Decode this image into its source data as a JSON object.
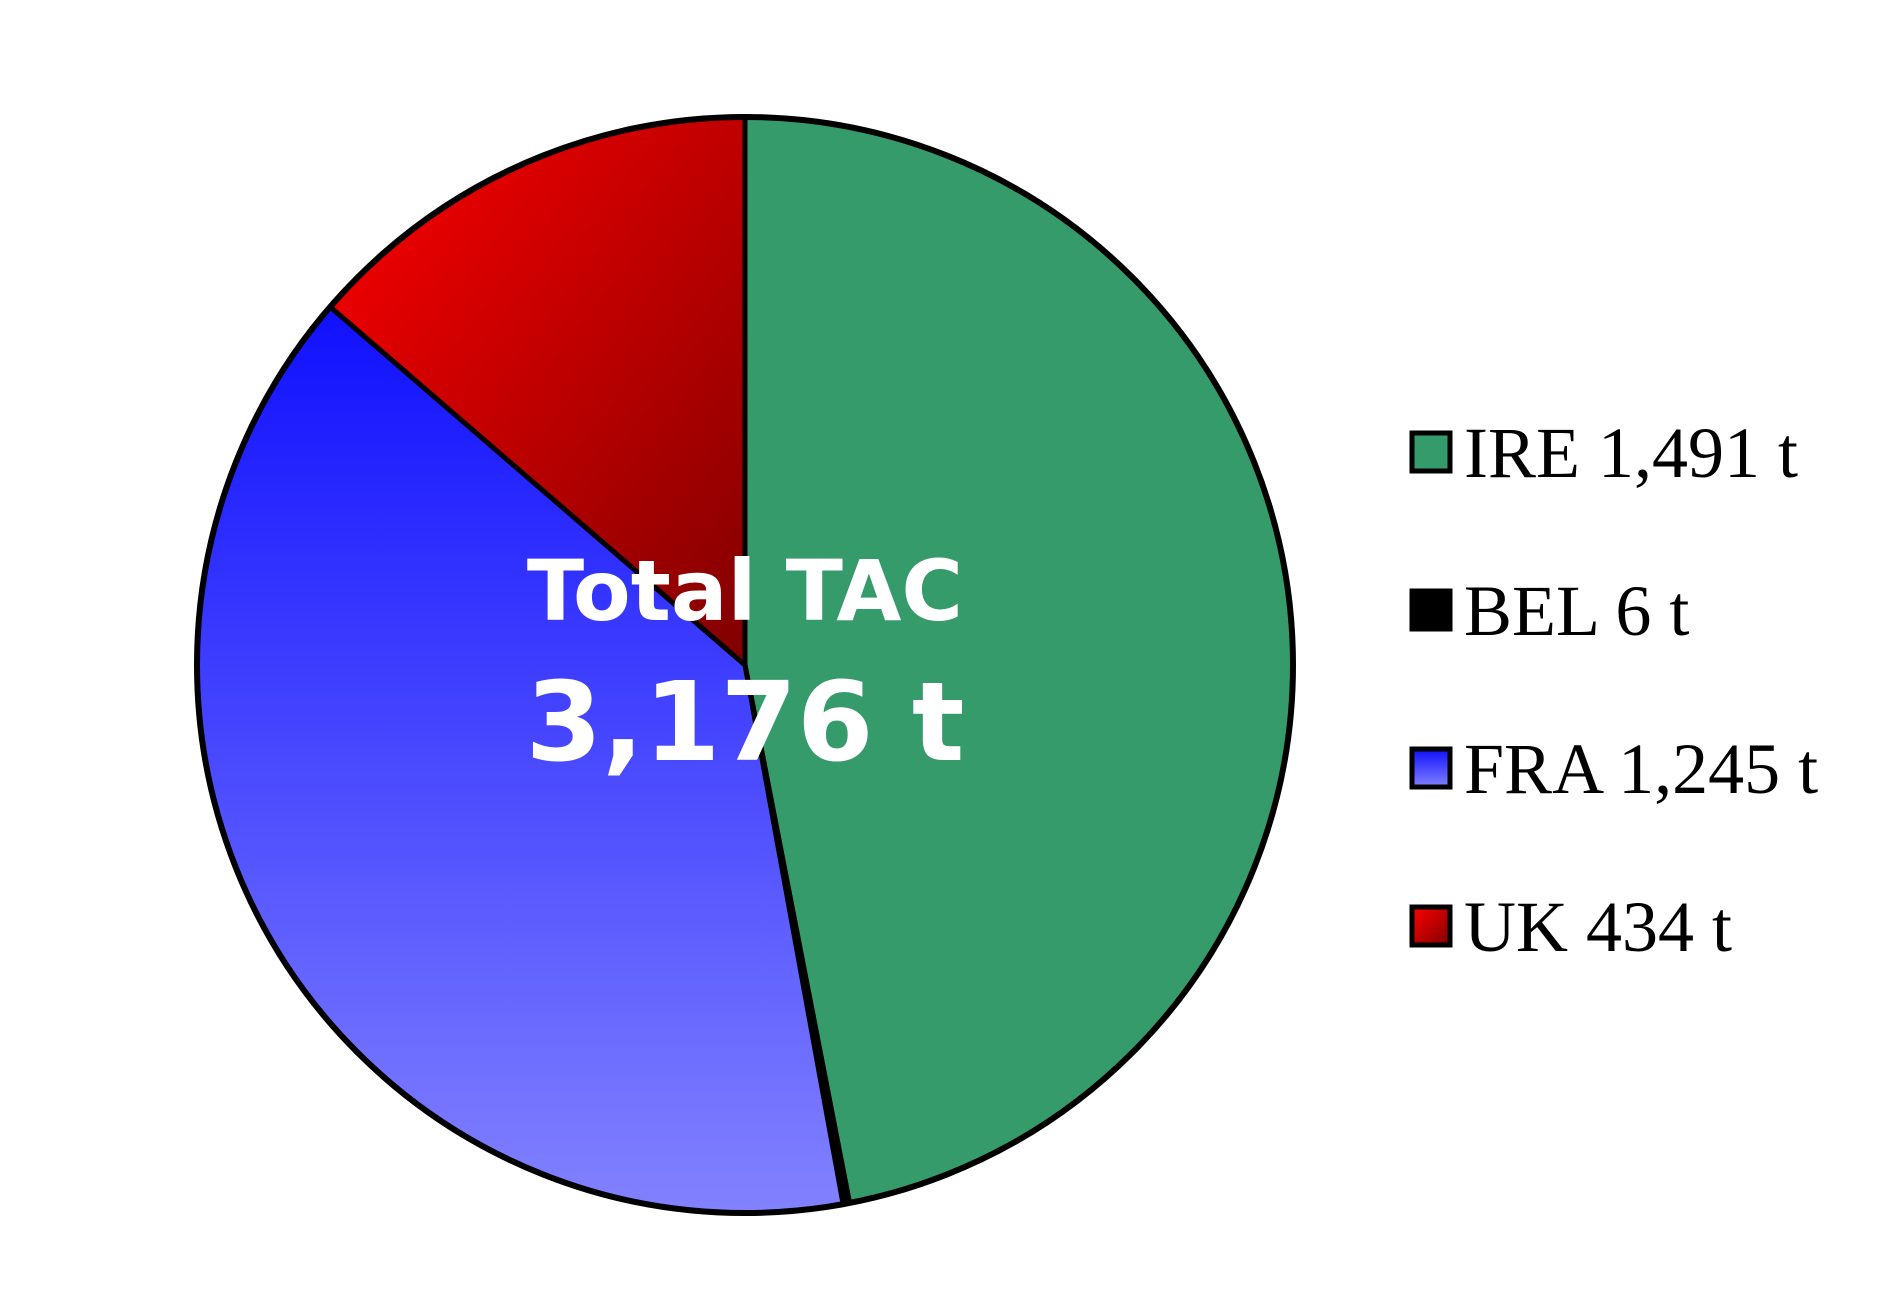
{
  "chart_data": {
    "type": "pie",
    "center_label": {
      "line1": "Total TAC",
      "line2": "3,176 t"
    },
    "start_angle_deg": 0,
    "direction": "clockwise",
    "slices": [
      {
        "name": "IRE",
        "value": 1491,
        "label": "IRE 1,491 t",
        "color": "#369b6b",
        "gradient": null
      },
      {
        "name": "BEL",
        "value": 6,
        "label": "BEL 6 t",
        "color": "#000000",
        "gradient": null
      },
      {
        "name": "FRA",
        "value": 1245,
        "label": "FRA 1,245 t",
        "color": "#5a5aff",
        "gradient": [
          "#1010ff",
          "#8282ff"
        ]
      },
      {
        "name": "UK",
        "value": 434,
        "label": "UK 434 t",
        "color": "#cc0000",
        "gradient": [
          "#ff0000",
          "#800000"
        ]
      }
    ],
    "legend": {
      "position": "right"
    }
  }
}
